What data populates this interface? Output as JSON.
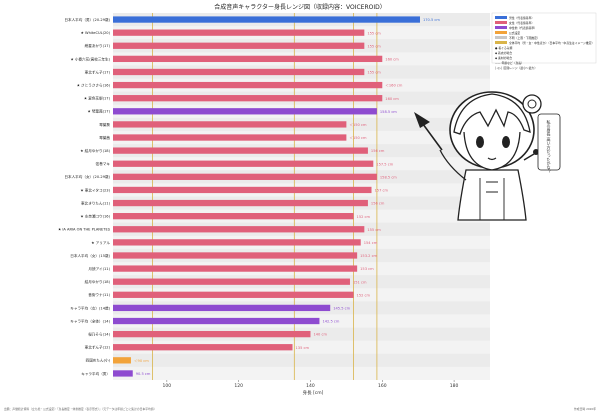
{
  "chart_data": {
    "type": "bar",
    "title": "合成音声キャラクター身長レンジ図（収録内容：VOICEROID）",
    "xlabel": "身長 [cm]",
    "xlim": [
      85,
      190
    ],
    "xticks": [
      80,
      100,
      120,
      140,
      160,
      180
    ],
    "reference_lines": [
      96,
      135.5,
      152,
      158.5
    ],
    "legend": [
      {
        "label": "男性（代表値基準）",
        "color": "#3a6fd8"
      },
      {
        "label": "女性（代表値基準）",
        "color": "#e0607a"
      },
      {
        "label": "中性他（代表値基準）",
        "color": "#8e4bd0"
      },
      {
        "label": "公式設定",
        "color": "#f2a33a"
      },
      {
        "label": "不明（上限・下限推定）",
        "color": "#c8c8c8"
      },
      {
        "label": "全体平均（男・女・中性ほか）（日本平均・中高生はイメージ推定）",
        "color": "#d9b44a"
      }
    ],
    "legend_markers": [
      "● 着ぐるみ類",
      "◆ 着衣の場合",
      "◆ 素材の場合",
      "—— 年齢など（身長）",
      "│◁▷│ 区間レンジ（最小〜最大）"
    ],
    "annotation": "私の身長 高い方だったかな？",
    "footnote": "出典：声優統計資料（立ち絵・公式設定）「身長推定・体重推定（表示形式）」（元データは年齢ごとに集計の日本平均値）",
    "credit": "作成日時 2020年",
    "categories": [
      "日本人平均（男）(20-29歳)",
      "★ WhiteCUL(20)",
      "紲星あかり(17)",
      "★ 小春六花(高校三年生)",
      "東北ずん子(17)",
      "★ さとうささら(16)",
      "★ 夏色花梨(17)",
      "★ 琴葉茜(17)",
      "琴葉葵",
      "琴葉茜",
      "★ 結月ゆかり(18)",
      "弦巻マキ",
      "日本人平均（女）(20-29歳)",
      "★ 東北イタコ(23)",
      "東北きりたん(11)",
      "★ 水奈瀬コウ(16)",
      "★ IA ARIA ON THE PLANETES",
      "★ アリアル",
      "日本人平均（女）(15歳)",
      "月読アイ(11)",
      "結月ゆかり(18)",
      "音街ウナ(11)",
      "キャラ平均（女）(14歳)",
      "キャラ平均（全体）(14)",
      "桜乃そら(14)",
      "東北ずん子(12)",
      "四国めたん(小)",
      "キャラ平均（男）"
    ],
    "values": [
      170.5,
      155,
      155,
      160,
      155,
      160,
      160,
      158.5,
      150,
      150,
      156,
      157.5,
      158.5,
      157,
      156,
      152,
      155,
      154,
      153,
      153,
      151,
      152,
      145.5,
      142.5,
      140,
      135,
      90,
      90.5
    ],
    "bar_labels": [
      "170.5 cm",
      "155 cm",
      "155 cm",
      "160 cm",
      "155 cm",
      "＜160 cm",
      "160 cm",
      "158.5 cm",
      "＜150 cm",
      "＜150 cm",
      "156 cm",
      "157.5 cm",
      "158.5 cm",
      "157 cm",
      "156 cm",
      "152 cm",
      "155 cm",
      "154 cm",
      "153.2 cm",
      "153 cm",
      "151 cm",
      "152 cm",
      "145.5 cm",
      "142.5 cm",
      "140 cm",
      "135 cm",
      "＜90 cm",
      "90.5 cm"
    ],
    "series_color": [
      "male",
      "female",
      "female",
      "female",
      "female",
      "female",
      "female",
      "neutral",
      "female",
      "female",
      "female",
      "female",
      "female",
      "female",
      "female",
      "female",
      "female",
      "female",
      "female",
      "female",
      "female",
      "female",
      "neutral",
      "neutral",
      "female",
      "female",
      "official",
      "neutral"
    ]
  }
}
